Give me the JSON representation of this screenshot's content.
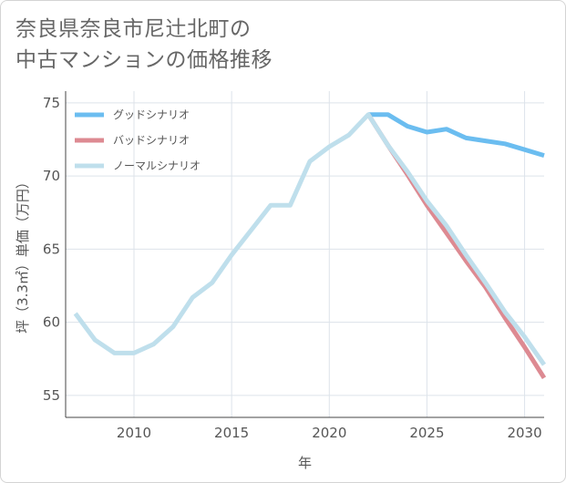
{
  "title": "奈良県奈良市尼辻北町の\n中古マンションの価格推移",
  "chart_data": {
    "type": "line",
    "xlabel": "年",
    "ylabel": "坪（3.3㎡）単価（万円）",
    "xlim": [
      2006.5,
      2031
    ],
    "ylim": [
      53.5,
      75.8
    ],
    "xticks": [
      2010,
      2015,
      2020,
      2025,
      2030
    ],
    "yticks": [
      55,
      60,
      65,
      70,
      75
    ],
    "grid": true,
    "legend_position": "top-left",
    "series": [
      {
        "name": "グッドシナリオ",
        "color": "#6bbdf0",
        "x": [
          2022,
          2023,
          2024,
          2025,
          2026,
          2027,
          2028,
          2029,
          2030,
          2031
        ],
        "y": [
          74.2,
          74.2,
          73.4,
          73.0,
          73.2,
          72.6,
          72.4,
          72.2,
          71.8,
          71.4
        ]
      },
      {
        "name": "バッドシナリオ",
        "color": "#dd8a92",
        "x": [
          2022,
          2023,
          2024,
          2025,
          2026,
          2027,
          2028,
          2029,
          2030,
          2031
        ],
        "y": [
          74.2,
          72.1,
          70.1,
          68.0,
          66.1,
          64.2,
          62.4,
          60.3,
          58.3,
          56.2
        ]
      },
      {
        "name": "ノーマルシナリオ",
        "color": "#bfdfec",
        "x": [
          2007,
          2008,
          2009,
          2010,
          2011,
          2012,
          2013,
          2014,
          2015,
          2016,
          2017,
          2018,
          2019,
          2020,
          2021,
          2022,
          2023,
          2024,
          2025,
          2026,
          2027,
          2028,
          2029,
          2030,
          2031
        ],
        "y": [
          60.6,
          58.8,
          57.9,
          57.9,
          58.5,
          59.7,
          61.7,
          62.7,
          64.6,
          66.3,
          68.0,
          68.0,
          71.0,
          72.0,
          72.8,
          74.2,
          72.1,
          70.3,
          68.3,
          66.6,
          64.6,
          62.7,
          60.7,
          59.0,
          57.1
        ]
      }
    ]
  }
}
